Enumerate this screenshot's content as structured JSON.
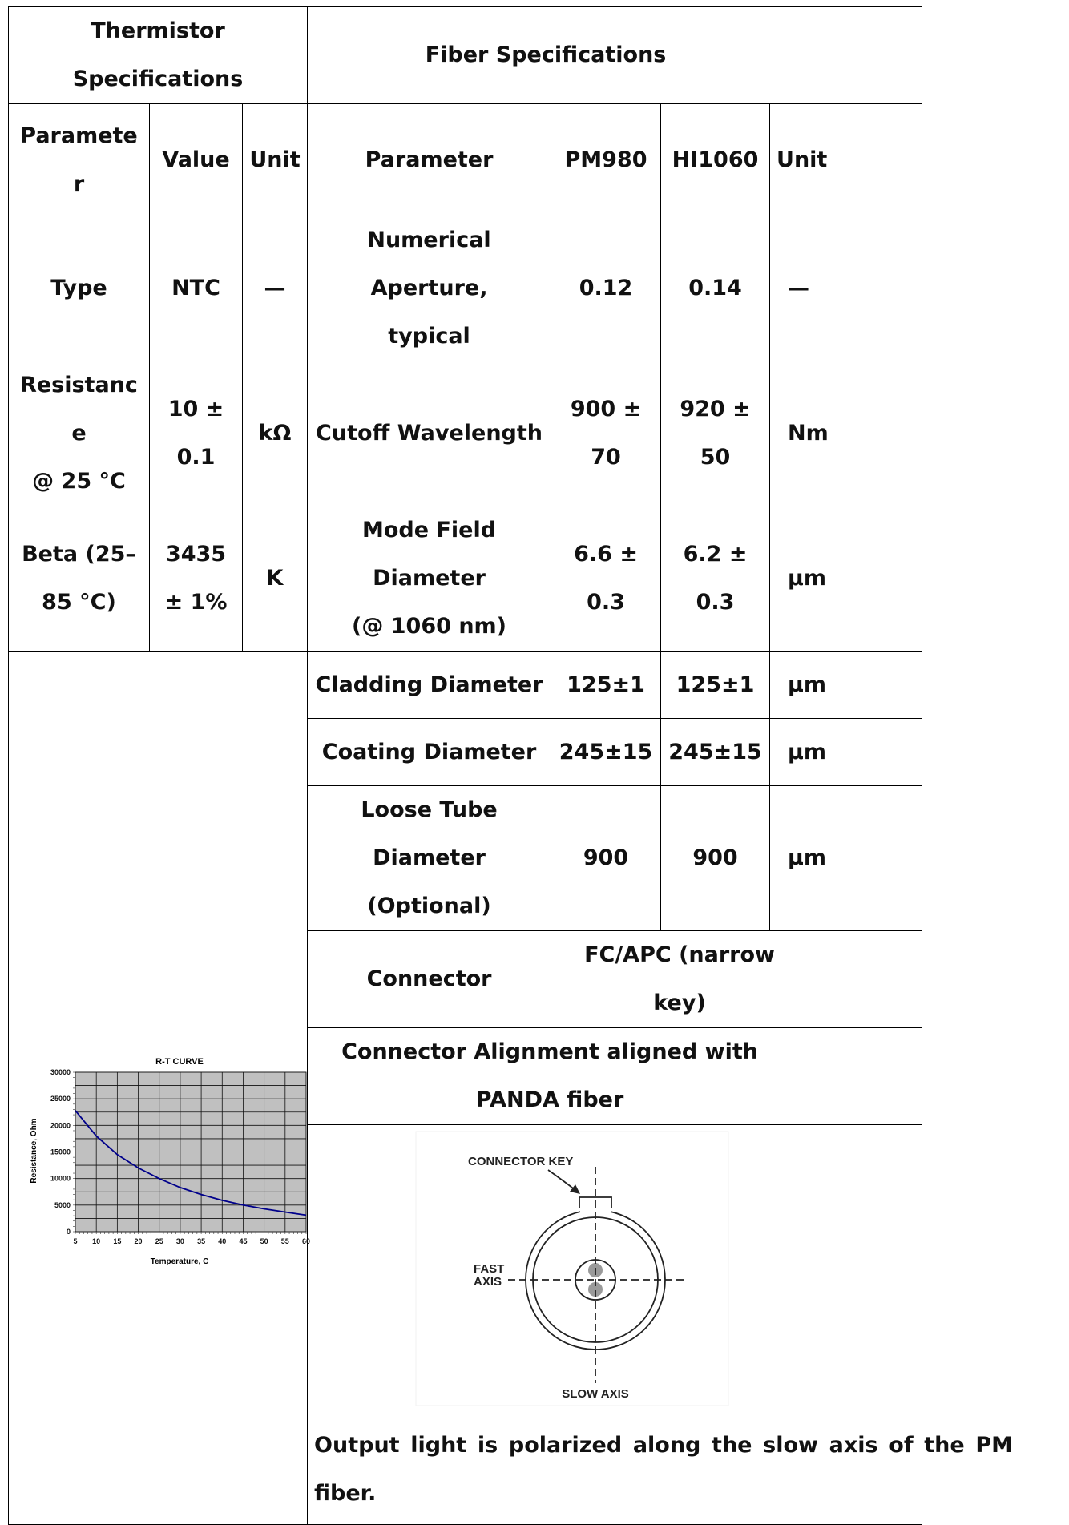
{
  "thermistor": {
    "title": "Thermistor Specifications",
    "headers": {
      "parameter": "Parameter",
      "value": "Value",
      "unit": "Unit"
    },
    "rows": [
      {
        "parameter": "Type",
        "value": "NTC",
        "unit": "—"
      },
      {
        "parameter": "Resistance\n@ 25 °C",
        "value": "10 ±\n0.1",
        "unit": "kΩ"
      },
      {
        "parameter": "Beta (25–\n85 °C)",
        "value": "3435\n± 1%",
        "unit": "K"
      }
    ]
  },
  "fiber": {
    "title": "Fiber Specifications",
    "headers": {
      "parameter": "Parameter",
      "pm980": "PM980",
      "hi1060": "HI1060",
      "unit": "Unit"
    },
    "rows": [
      {
        "parameter": "Numerical Aperture,\ntypical",
        "pm980": "0.12",
        "hi1060": "0.14",
        "unit": "—"
      },
      {
        "parameter": "Cutoff Wavelength",
        "pm980": "900 ±\n70",
        "hi1060": "920 ±\n50",
        "unit": "Nm"
      },
      {
        "parameter": "Mode Field Diameter\n(@ 1060 nm)",
        "pm980": "6.6 ±\n0.3",
        "hi1060": "6.2 ±\n0.3",
        "unit": "µm"
      },
      {
        "parameter": "Cladding Diameter",
        "pm980": "125±1",
        "hi1060": "125±1",
        "unit": "µm"
      },
      {
        "parameter": "Coating Diameter",
        "pm980": "245±15",
        "hi1060": "245±15",
        "unit": "µm"
      },
      {
        "parameter": "Loose Tube Diameter\n(Optional)",
        "pm980": "900",
        "hi1060": "900",
        "unit": "µm"
      }
    ],
    "connector": {
      "label": "Connector",
      "value": "FC/APC (narrow key)"
    },
    "alignment": "Connector Alignment aligned with PANDA fiber",
    "diagram": {
      "connector_key": "CONNECTOR KEY",
      "fast_axis_line1": "FAST",
      "fast_axis_line2": "AXIS",
      "slow_axis": "SLOW AXIS"
    },
    "note": "Output light is polarized along the slow axis of the PM fiber."
  },
  "chart_data": {
    "type": "line",
    "title": "R-T CURVE",
    "xlabel": "Temperature, C",
    "ylabel": "Resistance, Ohm",
    "xlim": [
      5,
      60
    ],
    "ylim": [
      0,
      30000
    ],
    "xticks": [
      5,
      10,
      15,
      20,
      25,
      30,
      35,
      40,
      45,
      50,
      55,
      60
    ],
    "yticks": [
      0,
      5000,
      10000,
      15000,
      20000,
      25000,
      30000
    ],
    "grid": true,
    "background": "#c0c0c0",
    "line_color": "#00008b",
    "series": [
      {
        "x": [
          5,
          10,
          15,
          20,
          25,
          30,
          35,
          40,
          45,
          50,
          55,
          60
        ],
        "y": [
          22800,
          18000,
          14500,
          12000,
          10000,
          8300,
          7000,
          5900,
          5000,
          4300,
          3700,
          3100
        ]
      }
    ]
  }
}
